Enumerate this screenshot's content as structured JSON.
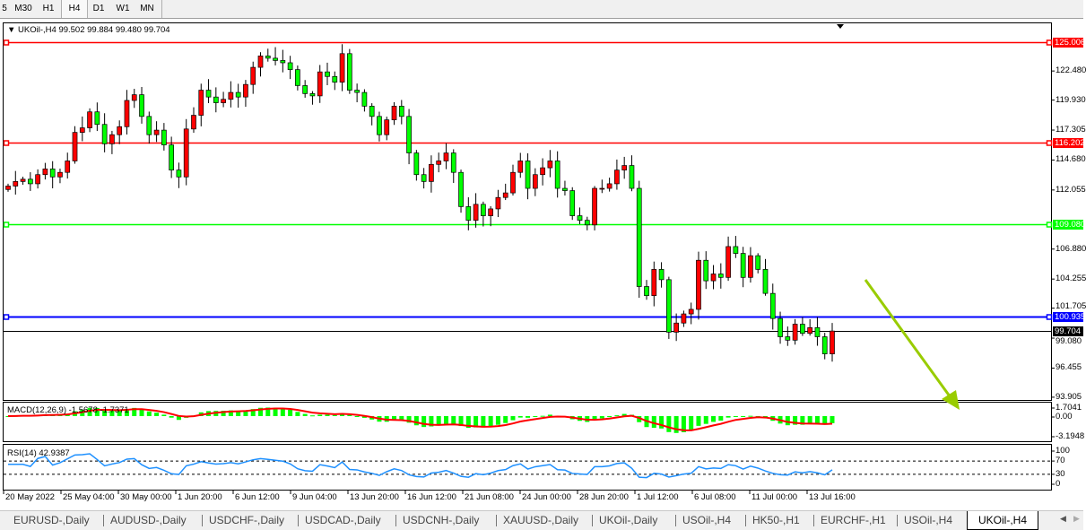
{
  "toolbar": {
    "timeframes": [
      "5",
      "M30",
      "H1",
      "H4",
      "D1",
      "W1",
      "MN"
    ],
    "active": "H4"
  },
  "chart": {
    "header": "UKOil-,H4  99.502 99.884 99.480 99.704",
    "symbol": "UKOil-",
    "period": "H4",
    "ohlc": {
      "open": 99.502,
      "high": 99.884,
      "low": 99.48,
      "close": 99.704
    },
    "bull_color": "#ff0000",
    "bear_color": "#00ff00",
    "closes": [
      112.4,
      112.8,
      113.0,
      112.6,
      113.4,
      113.9,
      113.2,
      113.6,
      114.6,
      117.1,
      117.5,
      118.9,
      117.8,
      116.1,
      116.9,
      117.6,
      119.9,
      120.4,
      118.5,
      116.9,
      117.3,
      116.0,
      113.8,
      113.2,
      117.4,
      118.6,
      120.8,
      120.2,
      119.7,
      120.0,
      120.6,
      120.2,
      121.3,
      122.8,
      123.8,
      123.6,
      123.4,
      123.2,
      122.6,
      121.2,
      120.5,
      120.3,
      122.4,
      122.0,
      121.5,
      124.0,
      120.8,
      120.6,
      119.4,
      118.5,
      116.9,
      118.2,
      119.4,
      118.5,
      115.3,
      113.4,
      112.8,
      114.3,
      114.6,
      115.3,
      113.6,
      110.6,
      109.4,
      110.8,
      109.8,
      110.4,
      111.4,
      111.8,
      113.6,
      114.6,
      112.2,
      113.4,
      114.0,
      114.6,
      112.2,
      112.0,
      109.8,
      109.4,
      109.0,
      112.2,
      112.2,
      112.6,
      113.8,
      114.2,
      112.2,
      103.6,
      102.8,
      105.1,
      104.2,
      99.6,
      100.4,
      101.2,
      101.6,
      105.9,
      104.1,
      104.7,
      104.4,
      107.1,
      106.5,
      104.4,
      106.3,
      105.1,
      103.0,
      100.8,
      99.2,
      98.9,
      100.3,
      99.5,
      100.0,
      99.2,
      97.7,
      99.7
    ],
    "price_axis": [
      "122.480",
      "119.930",
      "117.305",
      "114.680",
      "112.055",
      "106.880",
      "104.255",
      "101.705",
      "99.080",
      "96.455",
      "93.905"
    ],
    "levels": [
      {
        "price": 125.006,
        "label": "125.006",
        "color": "#ff0000"
      },
      {
        "price": 116.202,
        "label": "116.202",
        "color": "#ff0000"
      },
      {
        "price": 109.08,
        "label": "109.080",
        "color": "#00ff00"
      },
      {
        "price": 100.935,
        "label": "100.935",
        "color": "#0000ff"
      }
    ],
    "current_price": {
      "price": 99.704,
      "label": "99.704",
      "color": "#000000"
    },
    "arrow_color": "#99cc00",
    "time_axis": [
      "20 May 2022",
      "25 May 04:00",
      "30 May 00:00",
      "1 Jun 20:00",
      "6 Jun 12:00",
      "9 Jun 04:00",
      "13 Jun 20:00",
      "16 Jun 12:00",
      "21 Jun 08:00",
      "24 Jun 00:00",
      "28 Jun 20:00",
      "1 Jul 12:00",
      "6 Jul 08:00",
      "11 Jul 00:00",
      "13 Jul 16:00"
    ]
  },
  "macd": {
    "label": "MACD(12,26,9) -1.5678 -1.7371",
    "axis": [
      "1.7041",
      "0.00",
      "-3.1948"
    ],
    "hist_color": "#00ff00",
    "signal_color": "#ff0000"
  },
  "rsi": {
    "label": "RSI(14) 42.9387",
    "axis": [
      "100",
      "70",
      "30",
      "0"
    ],
    "line_color": "#1e90ff"
  },
  "tabs": [
    "EURUSD-,Daily",
    "AUDUSD-,Daily",
    "USDCHF-,Daily",
    "USDCAD-,Daily",
    "USDCNH-,Daily",
    "XAUUSD-,Daily",
    "UKOil-,Daily",
    "USOil-,H4",
    "HK50-,H1",
    "EURCHF-,H1",
    "USOil-,H4",
    "UKOil-,H4"
  ],
  "active_tab": "UKOil-,H4"
}
